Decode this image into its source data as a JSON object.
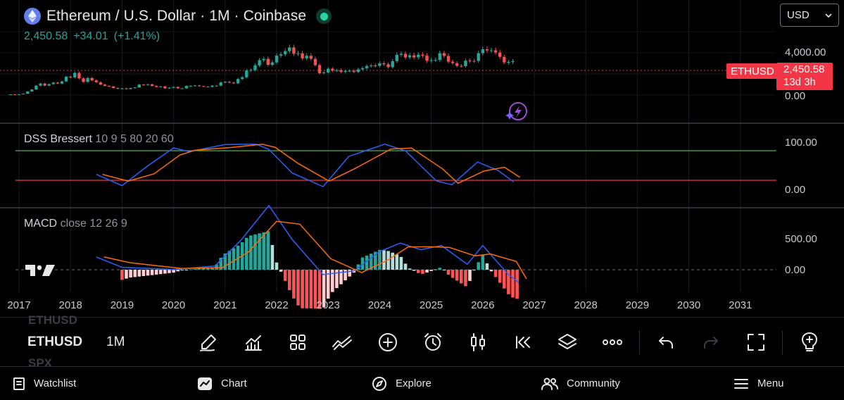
{
  "header": {
    "title": "Ethereum / U.S. Dollar · 1M · Coinbase",
    "price": "2,450.58",
    "change": "+34.01",
    "change_pct": "(+1.41%)",
    "currency": "USD",
    "status_color": "#26d7a4"
  },
  "price_axis": {
    "labels": [
      "4,000.00",
      "0.00"
    ]
  },
  "symbol_tag": {
    "symbol": "ETHUSD",
    "price": "2,450.58",
    "countdown": "13d 3h",
    "color": "#f23645"
  },
  "dss": {
    "name": "DSS Bressert",
    "params": "10 9 5 80 20 60",
    "axis_labels": [
      "100.00",
      "0.00"
    ],
    "upper_level_color": "#4caf50",
    "lower_level_color": "#f23645"
  },
  "macd": {
    "name": "MACD",
    "params": "close 12 26 9",
    "axis_labels": [
      "500.00",
      "0.00"
    ]
  },
  "time_axis": {
    "labels": [
      "2017",
      "2018",
      "2019",
      "2020",
      "2021",
      "2022",
      "2023",
      "2024",
      "2025",
      "2026",
      "2027",
      "2028",
      "2029",
      "2030",
      "2031"
    ]
  },
  "toolbar": {
    "symbol_above": "ETHUSD",
    "symbol": "ETHUSD",
    "symbol_below": "SPX",
    "timeframe": "1M",
    "tools": [
      "pencil-icon",
      "indicators-icon",
      "layout-grid-icon",
      "compare-icon",
      "add-icon",
      "alarm-icon",
      "candles-icon",
      "replay-icon",
      "layers-icon",
      "more-icon",
      "undo-icon",
      "redo-icon",
      "fullscreen-icon",
      "idea-icon"
    ]
  },
  "nav": {
    "items": [
      {
        "label": "Watchlist",
        "icon": "watchlist-icon"
      },
      {
        "label": "Chart",
        "icon": "chart-icon"
      },
      {
        "label": "Explore",
        "icon": "compass-icon"
      },
      {
        "label": "Community",
        "icon": "community-icon"
      },
      {
        "label": "Menu",
        "icon": "menu-icon"
      }
    ]
  },
  "chart_data": {
    "type": "candlestick",
    "interval": "1M",
    "x_start": "2016-11",
    "x_range": [
      "2016-11",
      "2031-08"
    ],
    "y_range": [
      0,
      4800
    ],
    "up_color": "#26a69a",
    "down_color": "#ef5350",
    "last_price": 2450.58,
    "close": [
      9,
      8,
      10,
      16,
      50,
      95,
      230,
      330,
      230,
      300,
      380,
      330,
      450,
      770,
      720,
      1100,
      650,
      420,
      670,
      510,
      400,
      280,
      220,
      200,
      140,
      115,
      130,
      110,
      140,
      160,
      280,
      260,
      290,
      220,
      180,
      200,
      130,
      150,
      180,
      130,
      130,
      220,
      220,
      240,
      210,
      190,
      180,
      230,
      230,
      390,
      420,
      380,
      340,
      600,
      730,
      1330,
      1390,
      1910,
      2600,
      2800,
      1980,
      2290,
      3300,
      3510,
      4060,
      4750,
      3600,
      3680,
      2860,
      3280,
      2800,
      1940,
      1070,
      1140,
      1520,
      1320,
      1360,
      1200,
      1280,
      1300,
      1190,
      1450,
      1580,
      1830,
      1900,
      1850,
      2180,
      2050,
      1700,
      2460,
      3430,
      3600,
      3010,
      3350,
      3020,
      3450,
      3300,
      2510,
      2610,
      2630,
      3700,
      3250,
      2400,
      2200,
      1850,
      1810,
      2530,
      2500,
      2490,
      3700,
      4400,
      4210,
      4210,
      3830,
      3100,
      2300,
      2350,
      2450
    ],
    "dss_estimated": [
      [
        2018.5,
        32
      ],
      [
        2019.0,
        8
      ],
      [
        2019.5,
        50
      ],
      [
        2020.0,
        88
      ],
      [
        2020.3,
        80
      ],
      [
        2021.0,
        95
      ],
      [
        2021.6,
        96
      ],
      [
        2021.85,
        85
      ],
      [
        2022.3,
        35
      ],
      [
        2022.9,
        6
      ],
      [
        2023.4,
        70
      ],
      [
        2024.1,
        96
      ],
      [
        2024.5,
        82
      ],
      [
        2025.1,
        18
      ],
      [
        2025.4,
        10
      ],
      [
        2025.9,
        58
      ],
      [
        2026.3,
        40
      ],
      [
        2026.6,
        16
      ]
    ],
    "macd_estimated": [
      [
        2018.5,
        210
      ],
      [
        2019.0,
        40
      ],
      [
        2020.0,
        5
      ],
      [
        2020.8,
        60
      ],
      [
        2021.3,
        480
      ],
      [
        2021.85,
        1060
      ],
      [
        2022.3,
        500
      ],
      [
        2022.9,
        -80
      ],
      [
        2023.5,
        -20
      ],
      [
        2024.0,
        300
      ],
      [
        2024.4,
        440
      ],
      [
        2024.8,
        330
      ],
      [
        2025.2,
        400
      ],
      [
        2025.7,
        90
      ],
      [
        2026.0,
        400
      ],
      [
        2026.5,
        -80
      ],
      [
        2026.7,
        -210
      ]
    ]
  }
}
